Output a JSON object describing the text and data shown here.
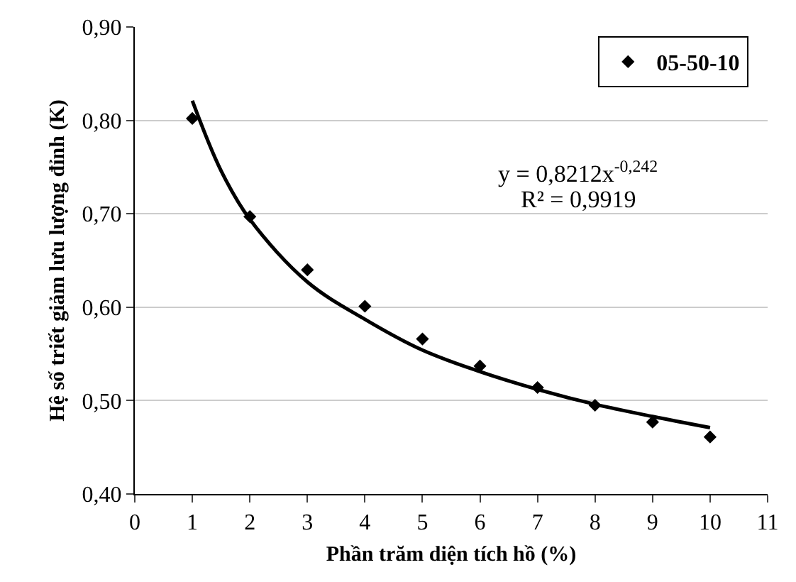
{
  "chart_data": {
    "type": "scatter",
    "xlabel": "Phần trăm diện tích hồ (%)",
    "ylabel": "Hệ số triết giảm lưu lượng đỉnh (K)",
    "x": [
      1,
      2,
      3,
      4,
      5,
      6,
      7,
      8,
      9,
      10
    ],
    "series": [
      {
        "name": "05-50-10",
        "color": "#000000",
        "marker": "diamond",
        "values": [
          0.802,
          0.697,
          0.64,
          0.601,
          0.566,
          0.537,
          0.514,
          0.495,
          0.477,
          0.461
        ]
      },
      {
        "type": "line",
        "color": "#000000",
        "marker": "none",
        "line_style": "solid",
        "x": [
          1,
          1.5,
          2,
          3,
          4,
          5,
          6,
          7,
          8,
          9,
          10
        ],
        "values": [
          0.821,
          0.746,
          0.694,
          0.627,
          0.587,
          0.554,
          0.531,
          0.512,
          0.496,
          0.483,
          0.471
        ]
      }
    ],
    "xlim": [
      0,
      11
    ],
    "xticks": [
      0,
      1,
      2,
      3,
      4,
      5,
      6,
      7,
      8,
      9,
      10,
      11
    ],
    "ylim": [
      0.4,
      0.9
    ],
    "yticks": [
      {
        "value": 0.4,
        "label": "0,40"
      },
      {
        "value": 0.5,
        "label": "0,50"
      },
      {
        "value": 0.6,
        "label": "0,60"
      },
      {
        "value": 0.7,
        "label": "0,70"
      },
      {
        "value": 0.8,
        "label": "0,80"
      },
      {
        "value": 0.9,
        "label": "0,90"
      }
    ],
    "grid": "y",
    "legend": "top right",
    "annotations": [
      "y = 0,8212x$^{-0,242}$",
      "R² = 0,9919"
    ]
  }
}
